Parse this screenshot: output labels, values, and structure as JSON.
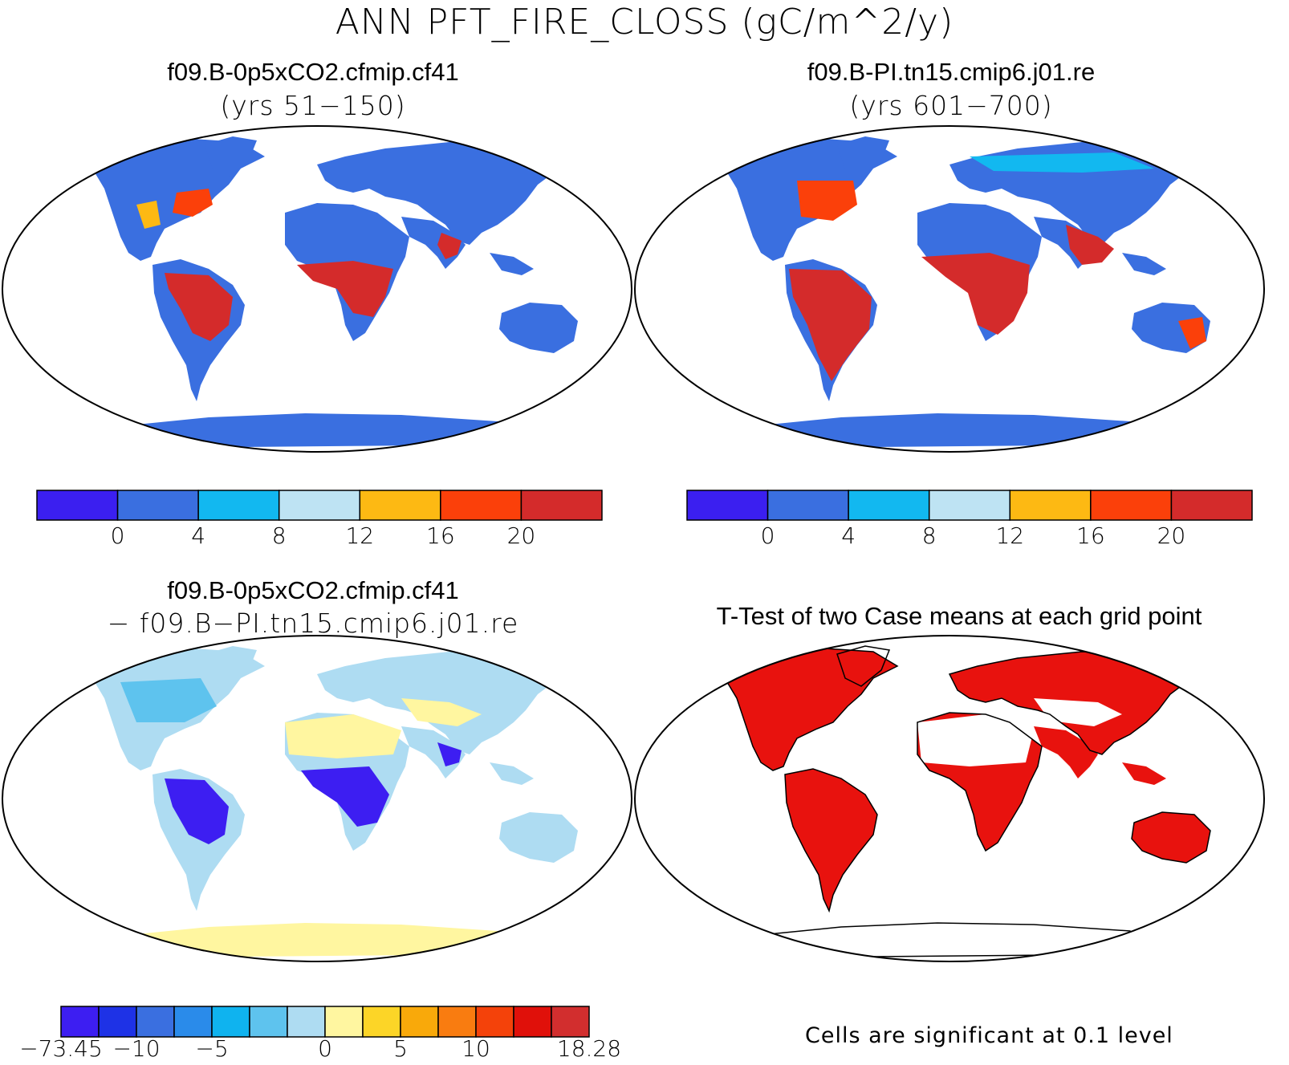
{
  "title": "ANN PFT_FIRE_CLOSS (gC/m^2/y)",
  "panels": {
    "top_left": {
      "title": "f09.B-0p5xCO2.cfmip.cf41",
      "subtitle": "(yrs 51−150)"
    },
    "top_right": {
      "title": "f09.B-PI.tn15.cmip6.j01.re",
      "subtitle": "(yrs 601−700)"
    },
    "bottom_left": {
      "title": "f09.B-0p5xCO2.cfmip.cf41",
      "subtitle": "− f09.B−PI.tn15.cmip6.j01.re"
    },
    "bottom_right": {
      "title": "T-Test of two Case means at each grid point",
      "note": "Cells are significant at 0.1 level"
    }
  },
  "colorbar_mean": {
    "colors": [
      "#3B1FF0",
      "#3A6FE0",
      "#12B8F0",
      "#BEE3F3",
      "#FDB913",
      "#FB400A",
      "#D42B2B"
    ],
    "labels": [
      "0",
      "4",
      "8",
      "12",
      "16",
      "20"
    ]
  },
  "colorbar_diff": {
    "colors": [
      "#3D1EF2",
      "#1E32E6",
      "#3A6FE0",
      "#2A8BEA",
      "#0FB3EF",
      "#5EC3EE",
      "#AEDCF2",
      "#FFF6A0",
      "#FCD527",
      "#F9A90A",
      "#F97C10",
      "#F4420A",
      "#E0100A",
      "#D22E2E"
    ],
    "labels": [
      "−73.45",
      "−10",
      "−5",
      "0",
      "5",
      "10",
      "18.28"
    ]
  },
  "map_colors": {
    "ocean": "#FFFFFF",
    "mean_land": "#3A6FE0",
    "mean_high": "#D42B2B",
    "mean_mid": "#FB400A",
    "diff_land": "#AEDCF2",
    "diff_pos": "#FFF6A0",
    "diff_neg": "#3D1EF2",
    "sig": "#E8120E"
  }
}
